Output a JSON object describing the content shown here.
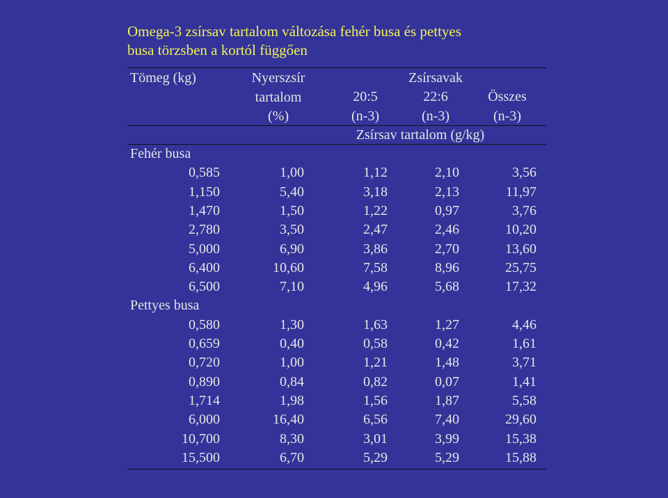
{
  "title": {
    "lines": [
      "Omega-3 zsírsav tartalom változása fehér busa és pettyes",
      "busa törzsben a kortól függően"
    ]
  },
  "header": {
    "weight": "Tömeg  (kg)",
    "crude_fat": [
      "Nyerszsír",
      "tartalom",
      "(%)"
    ],
    "fatty_acids": "Zsírsavak",
    "c205": [
      "20:5",
      "(n-3)"
    ],
    "c226": [
      "22:6",
      "(n-3)"
    ],
    "total": [
      "Összes",
      "(n-3)"
    ],
    "unit": "Zsírsav tartalom  (g/kg)"
  },
  "groups": [
    {
      "name": "Fehér busa",
      "rows": [
        [
          "0,585",
          "1,00",
          "1,12",
          "2,10",
          "3,56"
        ],
        [
          "1,150",
          "5,40",
          "3,18",
          "2,13",
          "11,97"
        ],
        [
          "1,470",
          "1,50",
          "1,22",
          "0,97",
          "3,76"
        ],
        [
          "2,780",
          "3,50",
          "2,47",
          "2,46",
          "10,20"
        ],
        [
          "5,000",
          "6,90",
          "3,86",
          "2,70",
          "13,60"
        ],
        [
          "6,400",
          "10,60",
          "7,58",
          "8,96",
          "25,75"
        ],
        [
          "6,500",
          "7,10",
          "4,96",
          "5,68",
          "17,32"
        ]
      ]
    },
    {
      "name": "Pettyes busa",
      "rows": [
        [
          "0,580",
          "1,30",
          "1,63",
          "1,27",
          "4,46"
        ],
        [
          "0,659",
          "0,40",
          "0,58",
          "0,42",
          "1,61"
        ],
        [
          "0,720",
          "1,00",
          "1,21",
          "1,48",
          "3,71"
        ],
        [
          "0,890",
          "0,84",
          "0,82",
          "0,07",
          "1,41"
        ],
        [
          "1,714",
          "1,98",
          "1,56",
          "1,87",
          "5,58"
        ],
        [
          "6,000",
          "16,40",
          "6,56",
          "7,40",
          "29,60"
        ],
        [
          "10,700",
          "8,30",
          "3,01",
          "3,99",
          "15,38"
        ],
        [
          "15,500",
          "6,70",
          "5,29",
          "5,29",
          "15,88"
        ]
      ]
    }
  ]
}
